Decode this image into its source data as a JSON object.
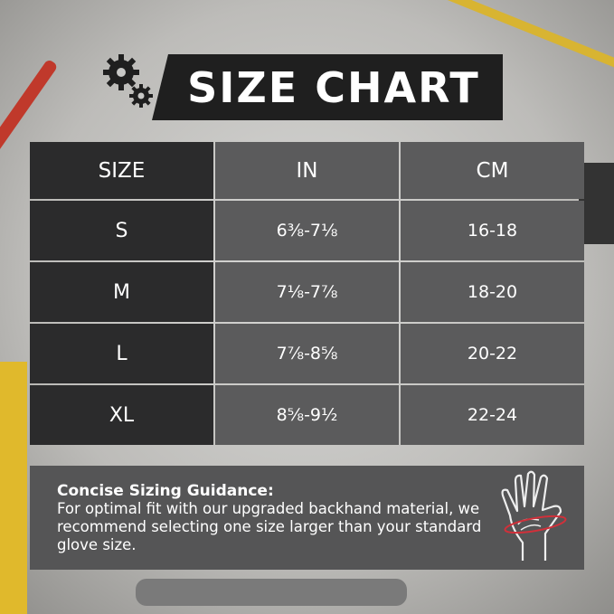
{
  "title": "SIZE CHART",
  "table": {
    "headers": [
      "SIZE",
      "IN",
      "CM"
    ],
    "rows": [
      [
        "S",
        "6⅜-7⅛",
        "16-18"
      ],
      [
        "M",
        "7⅛-7⅞",
        "18-20"
      ],
      [
        "L",
        "7⅞-8⅝",
        "20-22"
      ],
      [
        "XL",
        "8⅝-9½",
        "22-24"
      ]
    ]
  },
  "guidance": {
    "heading": "Concise Sizing Guidance:",
    "text": "For optimal fit with our upgraded backhand material, we recommend selecting one size larger than your standard glove size."
  },
  "icons": [
    "gears-icon",
    "hand-measure-icon"
  ],
  "colors": {
    "banner": "#1f1f1f",
    "size_column": "#2b2b2c",
    "value_columns": "#5b5b5c",
    "guidance_box": "#555556",
    "measure_line": "#d0303a"
  }
}
